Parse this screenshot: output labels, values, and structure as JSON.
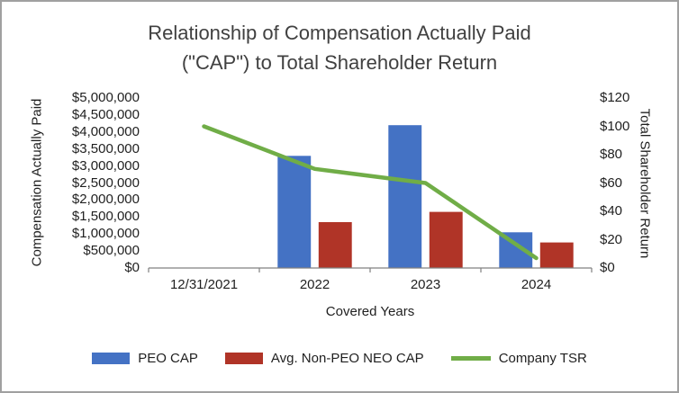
{
  "title": {
    "line1": "Relationship of Compensation Actually Paid",
    "line2": "(\"CAP\") to Total Shareholder Return"
  },
  "chart_data": {
    "type": "bar",
    "combo": "bar+line",
    "categories": [
      "12/31/2021",
      "2022",
      "2023",
      "2024"
    ],
    "xlabel": "Covered Years",
    "grid": false,
    "legend_position": "bottom",
    "left_axis": {
      "title": "Compensation Actually Paid",
      "min": 0,
      "max": 5000000,
      "ticks": [
        "$5,000,000",
        "$4,500,000",
        "$4,000,000",
        "$3,500,000",
        "$3,000,000",
        "$2,500,000",
        "$2,000,000",
        "$1,500,000",
        "$1,000,000",
        "$500,000",
        "$0"
      ]
    },
    "right_axis": {
      "title": "Total Shareholder Return",
      "min": 0,
      "max": 120,
      "ticks": [
        "$120",
        "$100",
        "$80",
        "$60",
        "$40",
        "$20",
        "$0"
      ]
    },
    "series": [
      {
        "name": "PEO CAP",
        "type": "bar",
        "axis": "left",
        "color": "#4472C4",
        "values": [
          null,
          3300000,
          4200000,
          1050000
        ]
      },
      {
        "name": "Avg. Non-PEO NEO CAP",
        "type": "bar",
        "axis": "left",
        "color": "#B03427",
        "values": [
          null,
          1350000,
          1650000,
          750000
        ]
      },
      {
        "name": "Company TSR",
        "type": "line",
        "axis": "right",
        "color": "#70AD47",
        "values": [
          100,
          70,
          60,
          7
        ]
      }
    ]
  },
  "colors": {
    "title_text": "#404040",
    "tick_text": "#1f1f1f",
    "axis_line": "#808080",
    "border": "#a0a0a0",
    "background": "#ffffff"
  }
}
